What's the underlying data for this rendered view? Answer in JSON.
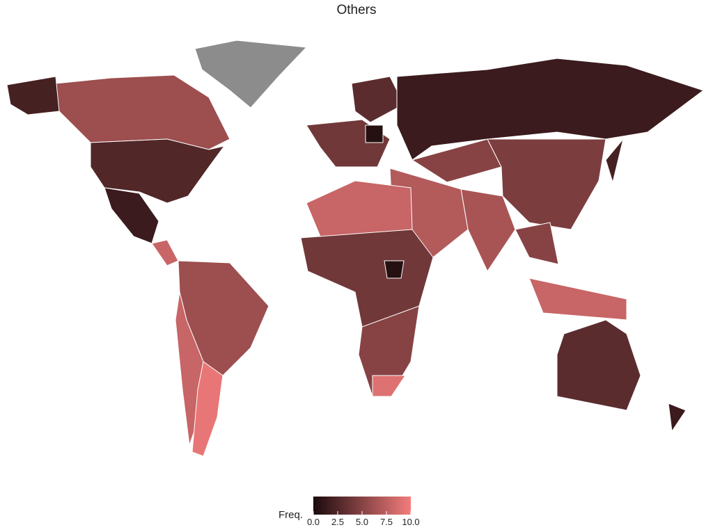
{
  "chart_data": {
    "type": "choropleth",
    "title": "Others",
    "values": [
      6,
      2,
      2.5,
      1.5,
      8,
      6,
      8,
      9.5,
      null,
      4,
      3,
      1.5,
      5,
      4.5,
      6.5,
      7,
      8,
      4,
      5,
      9,
      5,
      8,
      3,
      1.5,
      2,
      0.5,
      0.5
    ],
    "legend_title": "Freq.",
    "clim": [
      0,
      10
    ],
    "colors": [
      "#1a0a0c",
      "#f47c7c"
    ],
    "missing_color": "#8c8c8c",
    "cticks": [
      {
        "value": 0,
        "label": "0.0"
      },
      {
        "value": 2.5,
        "label": "2.5"
      },
      {
        "value": 5,
        "label": "5.0"
      },
      {
        "value": 7.5,
        "label": "7.5"
      },
      {
        "value": 10,
        "label": "10.0"
      }
    ]
  }
}
